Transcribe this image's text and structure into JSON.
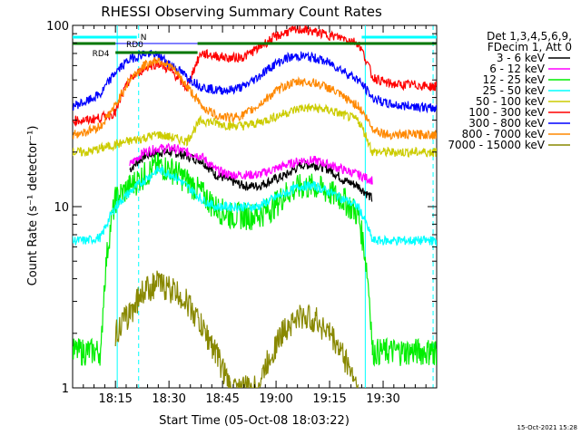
{
  "chart_data": {
    "type": "line",
    "title": "RHESSI Observing Summary Count Rates",
    "xlabel": "Start Time (05-Oct-08 18:03:22)",
    "ylabel": "Count Rate (s⁻¹ detector⁻¹)",
    "yscale": "log",
    "ylim": [
      1,
      100
    ],
    "xlim": [
      0,
      102
    ],
    "x_tick_labels": [
      "18:15",
      "18:30",
      "18:45",
      "19:00",
      "19:15",
      "19:30"
    ],
    "x_tick_values": [
      12,
      27,
      42,
      57,
      72,
      87
    ],
    "y_tick_labels": [
      "1",
      "10",
      "100"
    ],
    "y_tick_values": [
      1,
      10,
      100
    ],
    "legend_header": [
      "Det 1,3,4,5,6,9,",
      "FDecim 1, Att 0"
    ],
    "legend_position": "right",
    "footer_date": "15-Oct-2021 15:28",
    "annotations": {
      "N": {
        "label": "N",
        "x_start": 0,
        "x_end": 18,
        "x_start2": 81,
        "x_end2": 102,
        "color": "#00ffff"
      },
      "RD0": {
        "label": "RD0",
        "x_start": 0,
        "x_end": 35,
        "color": "#0000ff"
      },
      "RD4": {
        "label": "RD4",
        "x_start": 0,
        "x_end": 12,
        "x_start2": 12,
        "x_end2": 35,
        "x_start3": 35,
        "x_end3": 102,
        "color": "#007700"
      }
    },
    "night_lines": [
      {
        "x": 12.5,
        "style": "solid"
      },
      {
        "x": 18.5,
        "style": "dashed"
      },
      {
        "x": 82,
        "style": "solid"
      },
      {
        "x": 101,
        "style": "dashed"
      }
    ],
    "x": [
      0,
      4,
      8,
      12,
      16,
      20,
      24,
      28,
      32,
      36,
      40,
      44,
      48,
      52,
      56,
      60,
      64,
      68,
      72,
      76,
      80,
      84,
      88,
      92,
      96,
      100,
      102
    ],
    "series": [
      {
        "name": "3 - 6 keV",
        "color": "#000000",
        "x_range": [
          16,
          87
        ],
        "values": [
          null,
          null,
          null,
          null,
          16,
          19,
          20,
          20,
          19,
          18,
          15,
          14,
          13,
          13,
          14,
          15,
          17,
          17,
          16,
          14,
          13,
          11,
          null,
          null,
          null,
          null,
          null
        ]
      },
      {
        "name": "6 - 12 keV",
        "color": "#ff00ff",
        "x_range": [
          16,
          87
        ],
        "values": [
          null,
          null,
          null,
          null,
          17,
          20,
          21,
          21,
          20,
          19,
          16,
          15,
          15,
          15,
          16,
          17,
          18,
          18,
          17,
          16,
          15,
          14,
          null,
          null,
          null,
          null,
          null
        ]
      },
      {
        "name": "12 - 25 keV",
        "color": "#00ee00",
        "x_range": [
          0,
          102
        ],
        "values": [
          1.6,
          1.6,
          1.6,
          11,
          13,
          15,
          17,
          16,
          14,
          12,
          10,
          9,
          9,
          9,
          10,
          12,
          13,
          13,
          12,
          11,
          9,
          1.6,
          1.6,
          1.6,
          1.6,
          1.6,
          1.6
        ]
      },
      {
        "name": "25 - 50 keV",
        "color": "#00ffff",
        "x_range": [
          0,
          102
        ],
        "values": [
          6.5,
          6.5,
          6.8,
          10,
          12,
          14,
          16,
          15,
          13,
          11,
          10,
          10,
          10,
          10,
          11,
          12,
          13,
          13,
          12,
          11,
          10,
          6.5,
          6.5,
          6.5,
          6.5,
          6.5,
          6.5
        ]
      },
      {
        "name": "50 - 100 keV",
        "color": "#cccc00",
        "x_range": [
          0,
          102
        ],
        "values": [
          20,
          20,
          21,
          22,
          23,
          24,
          25,
          24,
          23,
          30,
          29,
          28,
          28,
          29,
          31,
          33,
          35,
          35,
          34,
          32,
          30,
          20,
          20,
          20,
          20,
          20,
          20
        ]
      },
      {
        "name": "100 - 300 keV",
        "color": "#ff0000",
        "x_range": [
          0,
          102
        ],
        "values": [
          30,
          30,
          31,
          33,
          50,
          58,
          62,
          55,
          45,
          70,
          68,
          66,
          67,
          75,
          85,
          92,
          95,
          92,
          88,
          85,
          80,
          52,
          48,
          47,
          47,
          46,
          46
        ]
      },
      {
        "name": "300 - 800 keV",
        "color": "#0000ff",
        "x_range": [
          0,
          102
        ],
        "values": [
          36,
          38,
          42,
          55,
          65,
          70,
          68,
          60,
          52,
          46,
          44,
          44,
          46,
          52,
          60,
          66,
          68,
          66,
          62,
          56,
          50,
          40,
          37,
          36,
          36,
          35,
          35
        ]
      },
      {
        "name": "800 - 7000 keV",
        "color": "#ff8800",
        "x_range": [
          0,
          102
        ],
        "values": [
          25,
          26,
          28,
          36,
          50,
          60,
          65,
          58,
          46,
          36,
          32,
          31,
          32,
          36,
          42,
          47,
          49,
          48,
          45,
          40,
          36,
          27,
          25,
          25,
          25,
          25,
          25
        ]
      },
      {
        "name": "7000 - 15000 keV",
        "color": "#888800",
        "x_range": [
          12,
          88
        ],
        "values": [
          null,
          null,
          null,
          2,
          2.6,
          3.5,
          3.8,
          3.5,
          3,
          2.2,
          1.6,
          1,
          1,
          1,
          1.6,
          2.2,
          2.5,
          2.4,
          2,
          1.5,
          1,
          null,
          null,
          null,
          null,
          null,
          null
        ]
      }
    ]
  }
}
